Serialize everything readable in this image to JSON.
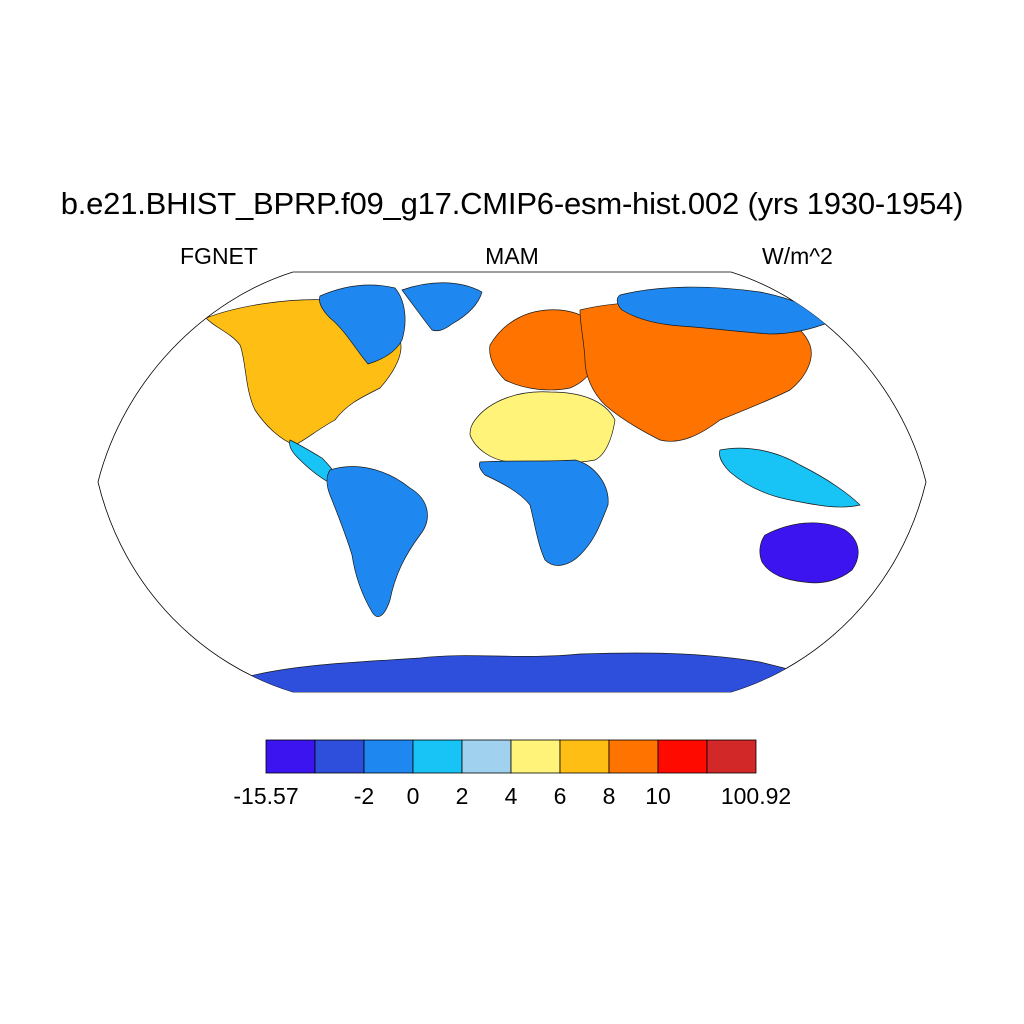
{
  "title": "b.e21.BHIST_BPRP.f09_g17.CMIP6-esm-hist.002 (yrs 1930-1954)",
  "subtitle_left": "FGNET",
  "subtitle_center": "MAM",
  "subtitle_right": "W/m^2",
  "projection": "Robinson",
  "colorbar": {
    "colors": [
      "#3c14f0",
      "#2d4fdc",
      "#1e87f0",
      "#18c3f5",
      "#a0d2f0",
      "#fff37a",
      "#ffbe14",
      "#ff7300",
      "#ff0a00",
      "#d22828"
    ],
    "labels": [
      "-15.57",
      "-2",
      "0",
      "2",
      "4",
      "6",
      "8",
      "10",
      "100.92"
    ]
  },
  "regions": [
    {
      "name": "antarctica",
      "color": "#2d4fdc"
    },
    {
      "name": "north-america",
      "color": "#ffbe14"
    },
    {
      "name": "east-canada-arctic",
      "color": "#1e87f0"
    },
    {
      "name": "greenland",
      "color": "#1e87f0"
    },
    {
      "name": "central-america",
      "color": "#18c3f5"
    },
    {
      "name": "south-america",
      "color": "#1e87f0"
    },
    {
      "name": "europe",
      "color": "#ff7300"
    },
    {
      "name": "africa-north",
      "color": "#fff37a"
    },
    {
      "name": "africa-south",
      "color": "#1e87f0"
    },
    {
      "name": "asia",
      "color": "#ff7300"
    },
    {
      "name": "siberia-north",
      "color": "#1e87f0"
    },
    {
      "name": "southeast-asia",
      "color": "#18c3f5"
    },
    {
      "name": "australia",
      "color": "#3c14f0"
    }
  ]
}
